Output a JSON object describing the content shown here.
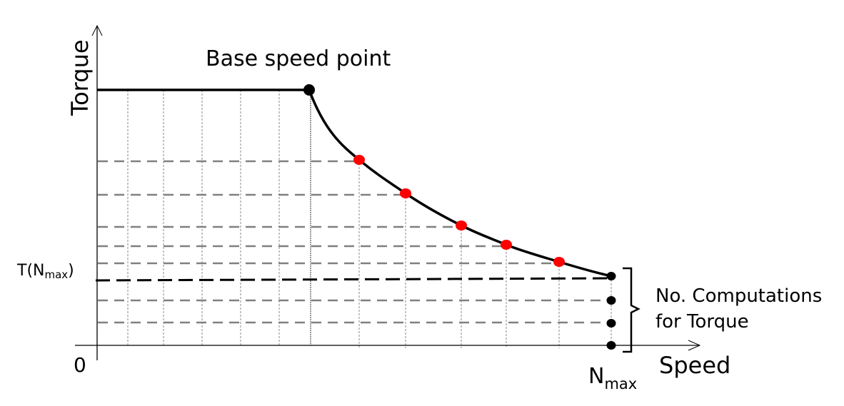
{
  "labels": {
    "y_axis": "Torque",
    "x_axis": "Speed",
    "origin": "0",
    "base_speed": "Base speed point",
    "t_nmax_main": "T(N",
    "t_nmax_sub": "max",
    "t_nmax_close": ")",
    "nmax_main": "N",
    "nmax_sub": "max",
    "brace_line1": "No. Computations",
    "brace_line2": "for Torque"
  },
  "colors": {
    "curve": "#000000",
    "computed_point": "#ff0000",
    "grid_dash": "#808080",
    "t_nmax_line": "#000000"
  }
}
